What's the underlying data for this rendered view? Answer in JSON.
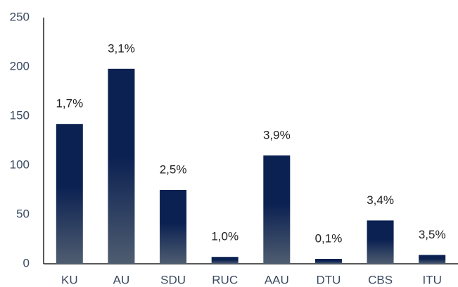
{
  "chart_data": {
    "type": "bar",
    "categories": [
      "KU",
      "AU",
      "SDU",
      "RUC",
      "AAU",
      "DTU",
      "CBS",
      "ITU"
    ],
    "values": [
      142,
      198,
      75,
      7,
      110,
      5,
      44,
      9
    ],
    "annotations": [
      "1,7%",
      "3,1%",
      "2,5%",
      "1,0%",
      "3,9%",
      "0,1%",
      "3,4%",
      "3,5%"
    ],
    "color": "#0b2152",
    "gradient_to": "#4f5d70",
    "ylim": [
      0,
      250
    ],
    "yticks": [
      0,
      50,
      100,
      150,
      200,
      250
    ],
    "grid": false
  }
}
